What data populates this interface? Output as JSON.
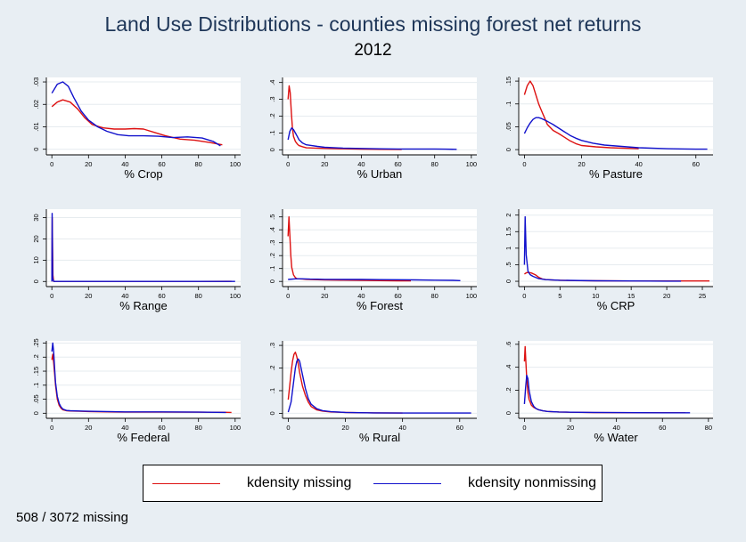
{
  "title": "Land Use Distributions - counties missing forest net returns",
  "subtitle": "2012",
  "note": "508 / 3072 missing",
  "legend": {
    "missing_label": "kdensity missing",
    "nonmissing_label": "kdensity nonmissing",
    "missing_color": "#dd1111",
    "nonmissing_color": "#1111cc"
  },
  "chart_data": [
    {
      "type": "line",
      "xlabel": "% Crop",
      "xlim": [
        -3,
        103
      ],
      "xticks": [
        0,
        20,
        40,
        60,
        80,
        100
      ],
      "ylim": [
        -0.0025,
        0.032
      ],
      "yticks": [
        0,
        0.01,
        0.02,
        0.03
      ],
      "ytick_labels": [
        "0",
        ".01",
        ".02",
        ".03"
      ],
      "series": [
        {
          "name": "kdensity missing",
          "x": [
            0,
            3,
            6,
            10,
            14,
            18,
            22,
            28,
            34,
            40,
            45,
            50,
            56,
            62,
            70,
            78,
            86,
            93
          ],
          "y": [
            0.019,
            0.021,
            0.022,
            0.021,
            0.018,
            0.014,
            0.011,
            0.0095,
            0.009,
            0.009,
            0.0092,
            0.009,
            0.0075,
            0.006,
            0.0045,
            0.004,
            0.003,
            0.002
          ]
        },
        {
          "name": "kdensity nonmissing",
          "x": [
            0,
            3,
            6,
            9,
            12,
            16,
            20,
            25,
            30,
            36,
            42,
            50,
            58,
            66,
            74,
            82,
            88,
            92
          ],
          "y": [
            0.025,
            0.029,
            0.03,
            0.028,
            0.023,
            0.017,
            0.013,
            0.01,
            0.008,
            0.0065,
            0.006,
            0.006,
            0.0058,
            0.0052,
            0.0055,
            0.005,
            0.0035,
            0.0015
          ]
        }
      ]
    },
    {
      "type": "line",
      "xlabel": "% Urban",
      "xlim": [
        -3,
        103
      ],
      "xticks": [
        0,
        20,
        40,
        60,
        80,
        100
      ],
      "ylim": [
        -0.03,
        0.43
      ],
      "yticks": [
        0,
        0.1,
        0.2,
        0.3,
        0.4
      ],
      "ytick_labels": [
        "0",
        ".1",
        ".2",
        ".3",
        ".4"
      ],
      "series": [
        {
          "name": "kdensity missing",
          "x": [
            0,
            0.6,
            1.2,
            1.8,
            2.4,
            3,
            4,
            5,
            6,
            8,
            10,
            15,
            20,
            30,
            40,
            50,
            62
          ],
          "y": [
            0.3,
            0.38,
            0.34,
            0.22,
            0.13,
            0.08,
            0.05,
            0.035,
            0.025,
            0.018,
            0.012,
            0.01,
            0.008,
            0.006,
            0.004,
            0.003,
            0.002
          ]
        },
        {
          "name": "kdensity nonmissing",
          "x": [
            0,
            1,
            2,
            3,
            4,
            5,
            6,
            8,
            10,
            13,
            16,
            20,
            30,
            40,
            50,
            60,
            70,
            80,
            86,
            92
          ],
          "y": [
            0.06,
            0.11,
            0.13,
            0.12,
            0.1,
            0.08,
            0.06,
            0.04,
            0.03,
            0.025,
            0.02,
            0.015,
            0.01,
            0.008,
            0.006,
            0.005,
            0.005,
            0.005,
            0.004,
            0.003
          ]
        }
      ]
    },
    {
      "type": "line",
      "xlabel": "% Pasture",
      "xlim": [
        -2,
        66
      ],
      "xticks": [
        0,
        20,
        40,
        60
      ],
      "ylim": [
        -0.0115,
        0.158
      ],
      "yticks": [
        0,
        0.05,
        0.1,
        0.15
      ],
      "ytick_labels": [
        "0",
        ".05",
        ".1",
        ".15"
      ],
      "series": [
        {
          "name": "kdensity missing",
          "x": [
            0,
            1,
            2,
            3,
            4,
            5,
            6,
            7,
            8,
            10,
            12,
            14,
            16,
            18,
            20,
            25,
            30,
            35,
            40
          ],
          "y": [
            0.12,
            0.14,
            0.15,
            0.14,
            0.12,
            0.1,
            0.085,
            0.07,
            0.055,
            0.042,
            0.035,
            0.027,
            0.019,
            0.013,
            0.009,
            0.006,
            0.004,
            0.003,
            0.002
          ]
        },
        {
          "name": "kdensity nonmissing",
          "x": [
            0,
            1,
            2,
            3,
            4,
            5,
            6,
            8,
            10,
            12,
            14,
            16,
            18,
            20,
            24,
            28,
            34,
            40,
            50,
            60,
            64
          ],
          "y": [
            0.035,
            0.048,
            0.058,
            0.066,
            0.07,
            0.07,
            0.068,
            0.062,
            0.055,
            0.047,
            0.039,
            0.031,
            0.025,
            0.02,
            0.014,
            0.01,
            0.007,
            0.004,
            0.002,
            0.001,
            0.001
          ]
        }
      ]
    },
    {
      "type": "line",
      "xlabel": "% Range",
      "xlim": [
        -3,
        103
      ],
      "xticks": [
        0,
        20,
        40,
        60,
        80,
        100
      ],
      "ylim": [
        -2.4,
        34
      ],
      "yticks": [
        0,
        10,
        20,
        30
      ],
      "ytick_labels": [
        "0",
        "10",
        "20",
        "30"
      ],
      "series": [
        {
          "name": "kdensity missing",
          "x": [
            0,
            0.2,
            0.6,
            1,
            20,
            40,
            60,
            80,
            98
          ],
          "y": [
            0,
            30,
            3,
            0.02,
            0.01,
            0.01,
            0.01,
            0.01,
            0.05
          ]
        },
        {
          "name": "kdensity nonmissing",
          "x": [
            0,
            0.15,
            0.45,
            1,
            20,
            40,
            60,
            80,
            100
          ],
          "y": [
            0,
            32,
            1.5,
            0.02,
            0.01,
            0.01,
            0.01,
            0.01,
            0.01
          ]
        }
      ]
    },
    {
      "type": "line",
      "xlabel": "% Forest",
      "xlim": [
        -3,
        103
      ],
      "xticks": [
        0,
        20,
        40,
        60,
        80,
        100
      ],
      "ylim": [
        -0.04,
        0.56
      ],
      "yticks": [
        0,
        0.1,
        0.2,
        0.3,
        0.4,
        0.5
      ],
      "ytick_labels": [
        "0",
        ".1",
        ".2",
        ".3",
        ".4",
        ".5"
      ],
      "series": [
        {
          "name": "kdensity missing",
          "x": [
            0,
            0.5,
            1,
            1.5,
            2,
            3,
            4,
            5,
            6,
            8,
            10,
            20,
            30,
            40,
            50,
            60,
            67
          ],
          "y": [
            0.35,
            0.5,
            0.36,
            0.2,
            0.11,
            0.05,
            0.03,
            0.02,
            0.02,
            0.018,
            0.016,
            0.012,
            0.01,
            0.008,
            0.006,
            0.005,
            0.005
          ]
        },
        {
          "name": "kdensity nonmissing",
          "x": [
            0,
            4,
            8,
            12,
            16,
            20,
            30,
            40,
            50,
            60,
            70,
            80,
            90,
            94
          ],
          "y": [
            0.015,
            0.02,
            0.02,
            0.018,
            0.017,
            0.016,
            0.015,
            0.015,
            0.014,
            0.013,
            0.012,
            0.01,
            0.008,
            0.006
          ]
        }
      ]
    },
    {
      "type": "line",
      "xlabel": "% CRP",
      "xlim": [
        -0.8,
        26.5
      ],
      "xticks": [
        0,
        5,
        10,
        15,
        20,
        25
      ],
      "ylim": [
        -0.16,
        2.18
      ],
      "yticks": [
        0,
        0.5,
        1,
        1.5,
        2
      ],
      "ytick_labels": [
        "0",
        ".5",
        "1",
        "1.5",
        "2"
      ],
      "series": [
        {
          "name": "kdensity missing",
          "x": [
            0,
            0.3,
            0.6,
            1,
            1.5,
            2,
            2.5,
            3,
            4,
            5,
            7,
            10,
            15,
            20,
            26
          ],
          "y": [
            0.22,
            0.26,
            0.27,
            0.25,
            0.2,
            0.12,
            0.07,
            0.05,
            0.04,
            0.03,
            0.02,
            0.015,
            0.01,
            0.01,
            0.01
          ]
        },
        {
          "name": "kdensity nonmissing",
          "x": [
            0,
            0.1,
            0.25,
            0.5,
            0.8,
            1.2,
            2,
            3,
            5,
            10,
            15,
            20,
            22
          ],
          "y": [
            0.5,
            1.95,
            0.8,
            0.3,
            0.2,
            0.15,
            0.08,
            0.05,
            0.03,
            0.015,
            0.01,
            0.005,
            0.005
          ]
        }
      ]
    },
    {
      "type": "line",
      "xlabel": "% Federal",
      "xlim": [
        -3,
        103
      ],
      "xticks": [
        0,
        20,
        40,
        60,
        80,
        100
      ],
      "ylim": [
        -0.018,
        0.258
      ],
      "yticks": [
        0,
        0.05,
        0.1,
        0.15,
        0.2,
        0.25
      ],
      "ytick_labels": [
        "0",
        ".05",
        ".1",
        ".15",
        ".2",
        ".25"
      ],
      "series": [
        {
          "name": "kdensity missing",
          "x": [
            0,
            0.5,
            1,
            1.5,
            2,
            3,
            4,
            5,
            6,
            8,
            10,
            15,
            20,
            30,
            40,
            60,
            80,
            98
          ],
          "y": [
            0.19,
            0.21,
            0.18,
            0.14,
            0.1,
            0.05,
            0.028,
            0.018,
            0.012,
            0.009,
            0.008,
            0.007,
            0.006,
            0.005,
            0.004,
            0.004,
            0.004,
            0.003
          ]
        },
        {
          "name": "kdensity nonmissing",
          "x": [
            0,
            0.5,
            1,
            1.5,
            2,
            3,
            4,
            5,
            6,
            8,
            10,
            15,
            20,
            30,
            40,
            60,
            80,
            95
          ],
          "y": [
            0.22,
            0.25,
            0.22,
            0.16,
            0.11,
            0.06,
            0.035,
            0.022,
            0.015,
            0.01,
            0.009,
            0.008,
            0.007,
            0.006,
            0.005,
            0.005,
            0.004,
            0.003
          ]
        }
      ]
    },
    {
      "type": "line",
      "xlabel": "% Rural",
      "xlim": [
        -2,
        66
      ],
      "xticks": [
        0,
        20,
        40,
        60
      ],
      "ylim": [
        -0.022,
        0.32
      ],
      "yticks": [
        0,
        0.1,
        0.2,
        0.3
      ],
      "ytick_labels": [
        "0",
        ".1",
        ".2",
        ".3"
      ],
      "series": [
        {
          "name": "kdensity missing",
          "x": [
            0,
            0.5,
            1,
            1.5,
            2,
            2.5,
            3,
            3.5,
            4,
            5,
            6,
            7,
            8,
            10,
            12,
            15,
            20,
            30,
            40
          ],
          "y": [
            0.06,
            0.12,
            0.18,
            0.23,
            0.26,
            0.27,
            0.25,
            0.22,
            0.18,
            0.12,
            0.08,
            0.05,
            0.03,
            0.015,
            0.01,
            0.006,
            0.004,
            0.002,
            0.001
          ]
        },
        {
          "name": "kdensity nonmissing",
          "x": [
            0,
            1,
            2,
            2.5,
            3,
            3.5,
            4,
            4.5,
            5,
            6,
            7,
            8,
            10,
            12,
            15,
            20,
            30,
            40,
            50,
            64
          ],
          "y": [
            0.005,
            0.05,
            0.15,
            0.2,
            0.23,
            0.24,
            0.23,
            0.2,
            0.17,
            0.11,
            0.065,
            0.04,
            0.02,
            0.012,
            0.007,
            0.004,
            0.002,
            0.001,
            0.001,
            0.001
          ]
        }
      ]
    },
    {
      "type": "line",
      "xlabel": "% Water",
      "xlim": [
        -2.5,
        82
      ],
      "xticks": [
        0,
        20,
        40,
        60,
        80
      ],
      "ylim": [
        -0.045,
        0.63
      ],
      "yticks": [
        0,
        0.2,
        0.4,
        0.6
      ],
      "ytick_labels": [
        "0",
        ".2",
        ".4",
        ".6"
      ],
      "series": [
        {
          "name": "kdensity missing",
          "x": [
            0,
            0.3,
            0.6,
            1,
            1.5,
            2,
            3,
            4,
            5,
            6,
            8,
            10,
            15,
            20,
            30,
            50,
            70
          ],
          "y": [
            0.45,
            0.58,
            0.45,
            0.3,
            0.18,
            0.12,
            0.07,
            0.05,
            0.04,
            0.03,
            0.02,
            0.015,
            0.01,
            0.008,
            0.005,
            0.004,
            0.003
          ]
        },
        {
          "name": "kdensity nonmissing",
          "x": [
            0,
            0.5,
            1,
            1.5,
            2,
            3,
            4,
            5,
            6,
            8,
            10,
            15,
            20,
            30,
            40,
            50,
            60,
            72
          ],
          "y": [
            0.08,
            0.22,
            0.33,
            0.3,
            0.2,
            0.1,
            0.06,
            0.04,
            0.03,
            0.02,
            0.015,
            0.01,
            0.008,
            0.006,
            0.005,
            0.004,
            0.003,
            0.003
          ]
        }
      ]
    }
  ]
}
